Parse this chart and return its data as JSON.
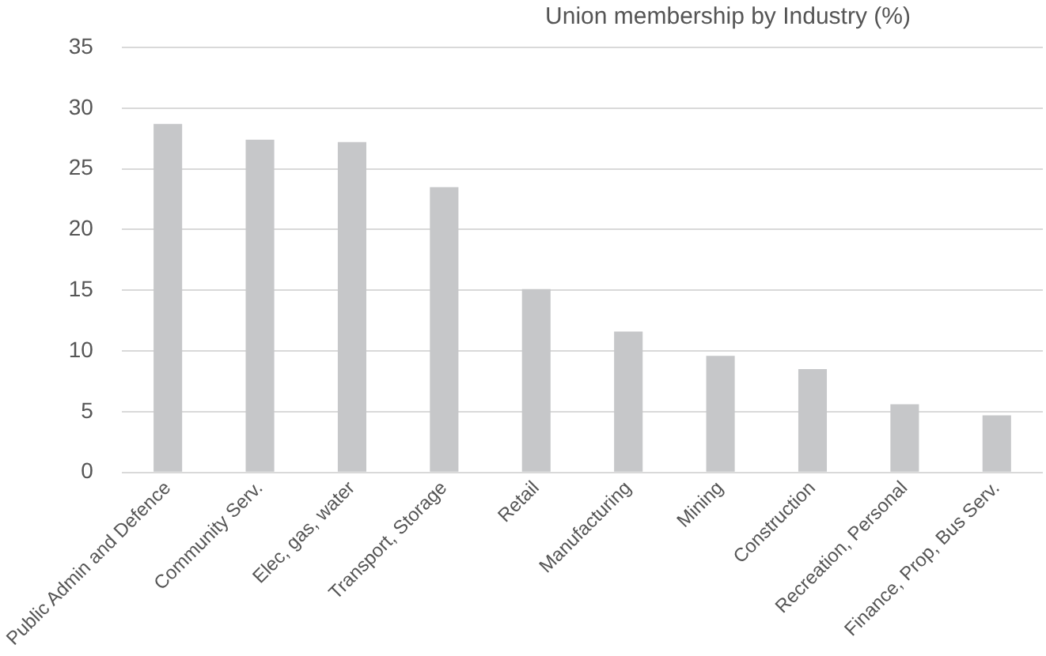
{
  "chart_data": {
    "type": "bar",
    "title": "Union membership by Industry (%)",
    "categories": [
      "Public Admin and Defence",
      "Community Serv.",
      "Elec, gas, water",
      "Transport, Storage",
      "Retail",
      "Manufacturing",
      "Mining",
      "Construction",
      "Recreation, Personal",
      "Finance, Prop, Bus Serv."
    ],
    "values": [
      28.7,
      27.4,
      27.2,
      23.5,
      15.1,
      11.6,
      9.6,
      8.5,
      5.6,
      4.7
    ],
    "color": "#c6c7c9",
    "ylim": [
      0,
      35
    ],
    "yticks": [
      0,
      5,
      10,
      15,
      20,
      25,
      30,
      35
    ],
    "grid": "y",
    "legend": false
  }
}
